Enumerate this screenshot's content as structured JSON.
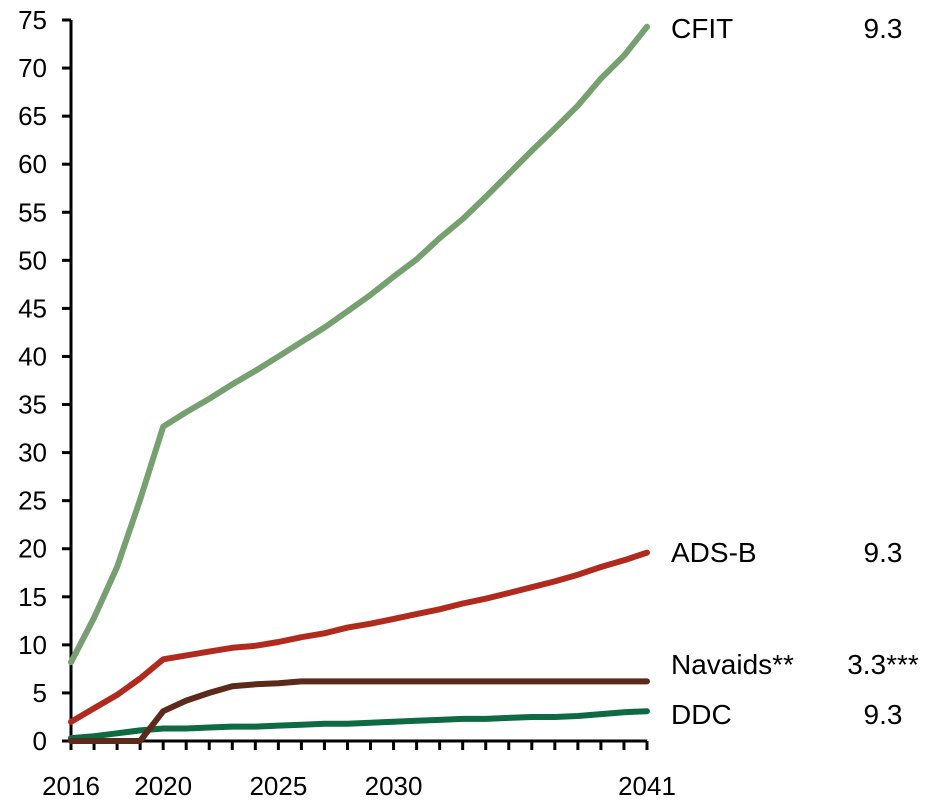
{
  "chart_data": {
    "type": "line",
    "ylim": [
      0,
      75
    ],
    "xlim": [
      2016,
      2041
    ],
    "y_ticks": [
      0,
      5,
      10,
      15,
      20,
      25,
      30,
      35,
      40,
      45,
      50,
      55,
      60,
      65,
      70,
      75
    ],
    "x_tick_labels": [
      2016,
      2020,
      2025,
      2030,
      2041
    ],
    "x": [
      2016,
      2017,
      2018,
      2019,
      2020,
      2021,
      2022,
      2023,
      2024,
      2025,
      2026,
      2027,
      2028,
      2029,
      2030,
      2031,
      2032,
      2033,
      2034,
      2035,
      2036,
      2037,
      2038,
      2039,
      2040,
      2041
    ],
    "series": [
      {
        "name": "CFIT",
        "value_label": "9.3",
        "color": "#76a06f",
        "values": [
          8.2,
          12.8,
          18.1,
          25.1,
          32.7,
          34.2,
          35.6,
          37.1,
          38.5,
          40.0,
          41.5,
          43.0,
          44.7,
          46.4,
          48.3,
          50.1,
          52.3,
          54.3,
          56.6,
          59.0,
          61.4,
          63.7,
          66.1,
          68.9,
          71.3,
          74.3
        ]
      },
      {
        "name": "ADS-B",
        "value_label": "9.3",
        "color": "#b02a1e",
        "values": [
          2.0,
          3.4,
          4.8,
          6.5,
          8.5,
          8.9,
          9.3,
          9.7,
          9.9,
          10.3,
          10.8,
          11.2,
          11.8,
          12.2,
          12.7,
          13.2,
          13.7,
          14.3,
          14.8,
          15.4,
          16.0,
          16.6,
          17.3,
          18.1,
          18.8,
          19.6
        ]
      },
      {
        "name": "Navaids**",
        "value_label": "3.3***",
        "color": "#5c2a1a",
        "values": [
          0,
          0,
          0,
          0,
          3.1,
          4.2,
          5.0,
          5.7,
          5.9,
          6.0,
          6.2,
          6.2,
          6.2,
          6.2,
          6.2,
          6.2,
          6.2,
          6.2,
          6.2,
          6.2,
          6.2,
          6.2,
          6.2,
          6.2,
          6.2,
          6.2
        ]
      },
      {
        "name": "DDC",
        "value_label": "9.3",
        "color": "#0e6a43",
        "values": [
          0.3,
          0.5,
          0.8,
          1.1,
          1.3,
          1.3,
          1.4,
          1.5,
          1.5,
          1.6,
          1.7,
          1.8,
          1.8,
          1.9,
          2.0,
          2.1,
          2.2,
          2.3,
          2.3,
          2.4,
          2.5,
          2.5,
          2.6,
          2.8,
          3.0,
          3.1
        ]
      }
    ]
  }
}
